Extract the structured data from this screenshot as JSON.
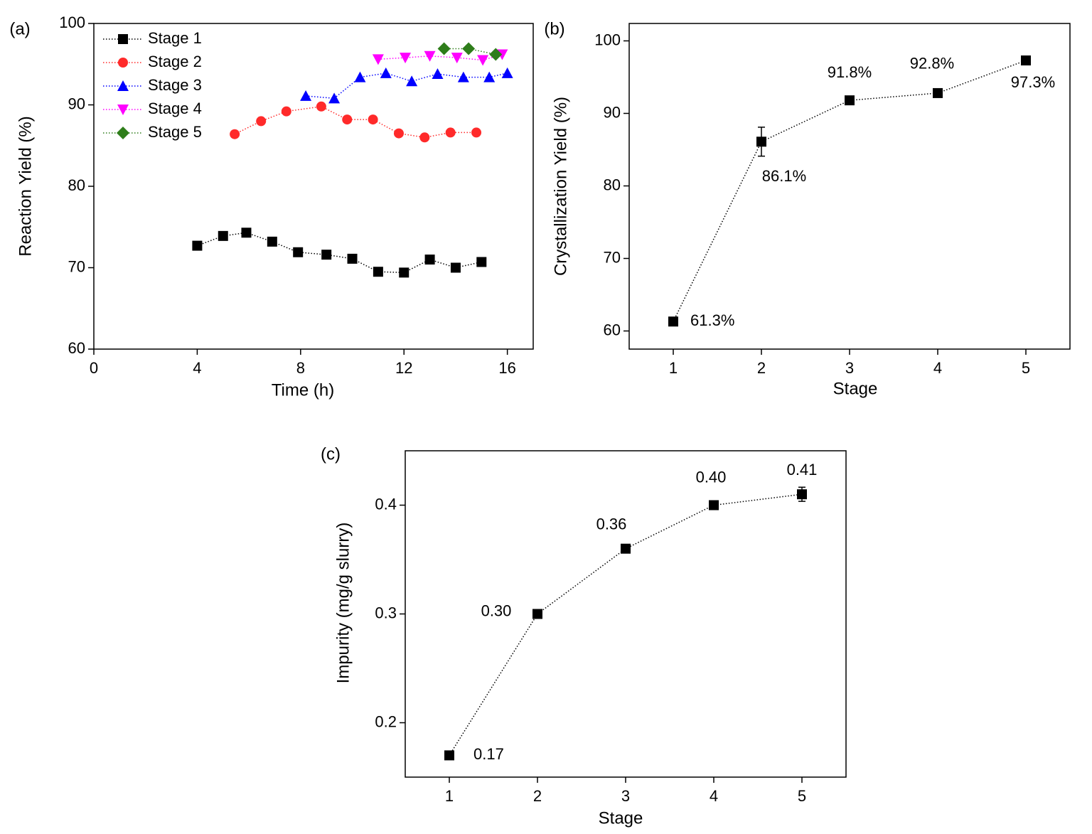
{
  "chart_data": [
    {
      "type": "line",
      "panel_label": "(a)",
      "x_label": "Time (h)",
      "y_label": "Reaction Yield (%)",
      "xlim": [
        0,
        17
      ],
      "xticks": [
        0,
        4,
        8,
        12,
        16
      ],
      "ylim": [
        60,
        100
      ],
      "yticks": [
        60,
        70,
        80,
        90,
        100
      ],
      "legend": "upper left",
      "series": [
        {
          "name": "Stage 1",
          "color": "#000000",
          "marker": "square",
          "x": [
            4,
            5,
            5.9,
            6.9,
            7.9,
            9,
            10,
            11,
            12,
            13,
            14,
            15
          ],
          "values": [
            72.7,
            73.9,
            74.3,
            73.2,
            71.9,
            71.6,
            71.1,
            69.5,
            69.4,
            71.0,
            70.0,
            70.7
          ]
        },
        {
          "name": "Stage 2",
          "color": "#ff2a2a",
          "marker": "circle",
          "x": [
            5.45,
            6.47,
            7.45,
            8.8,
            9.8,
            10.8,
            11.8,
            12.8,
            13.8,
            14.8
          ],
          "values": [
            86.4,
            88.0,
            89.2,
            89.8,
            88.2,
            88.2,
            86.5,
            86.0,
            86.6,
            86.6
          ]
        },
        {
          "name": "Stage 3",
          "color": "#0000ff",
          "marker": "triangle-up",
          "x": [
            8.2,
            9.3,
            10.3,
            11.3,
            12.3,
            13.3,
            14.3,
            15.3,
            16.0
          ],
          "values": [
            91.1,
            90.8,
            93.4,
            93.9,
            92.9,
            93.8,
            93.4,
            93.4,
            93.9
          ]
        },
        {
          "name": "Stage 4",
          "color": "#ff00ff",
          "marker": "triangle-down",
          "x": [
            11.0,
            12.05,
            13.0,
            14.05,
            15.05,
            15.8
          ],
          "values": [
            95.6,
            95.8,
            96.0,
            95.8,
            95.5,
            96.2
          ]
        },
        {
          "name": "Stage 5",
          "color": "#2e7d1a",
          "marker": "diamond",
          "x": [
            13.55,
            14.5,
            15.55
          ],
          "values": [
            96.9,
            96.9,
            96.2
          ]
        }
      ]
    },
    {
      "type": "line",
      "panel_label": "(b)",
      "x_label": "Stage",
      "y_label": "Crystallization Yield (%)",
      "xlim": [
        0.5,
        5.5
      ],
      "xticks": [
        1,
        2,
        3,
        4,
        5
      ],
      "ylim": [
        57.5,
        102.4
      ],
      "yticks": [
        60,
        70,
        80,
        90,
        100
      ],
      "color": "#000000",
      "marker": "square",
      "x": [
        1,
        2,
        3,
        4,
        5
      ],
      "values": [
        61.3,
        86.1,
        91.8,
        92.8,
        97.3
      ],
      "value_labels": [
        "61.3%",
        "86.1%",
        "91.8%",
        "92.8%",
        "97.3%"
      ],
      "errors": [
        0.3,
        2.0,
        0.5,
        0.3,
        0.3
      ]
    },
    {
      "type": "line",
      "panel_label": "(c)",
      "x_label": "Stage",
      "y_label": "Impurity (mg/g slurry)",
      "xlim": [
        0.5,
        5.5
      ],
      "xticks": [
        1,
        2,
        3,
        4,
        5
      ],
      "ylim": [
        0.15,
        0.45
      ],
      "yticks": [
        0.2,
        0.3,
        0.4
      ],
      "color": "#000000",
      "marker": "square",
      "x": [
        1,
        2,
        3,
        4,
        5
      ],
      "values": [
        0.17,
        0.3,
        0.36,
        0.4,
        0.41
      ],
      "value_labels": [
        "0.17",
        "0.30",
        "0.36",
        "0.40",
        "0.41"
      ],
      "errors": [
        0.002,
        0.003,
        0.003,
        0.003,
        0.0065
      ]
    }
  ]
}
